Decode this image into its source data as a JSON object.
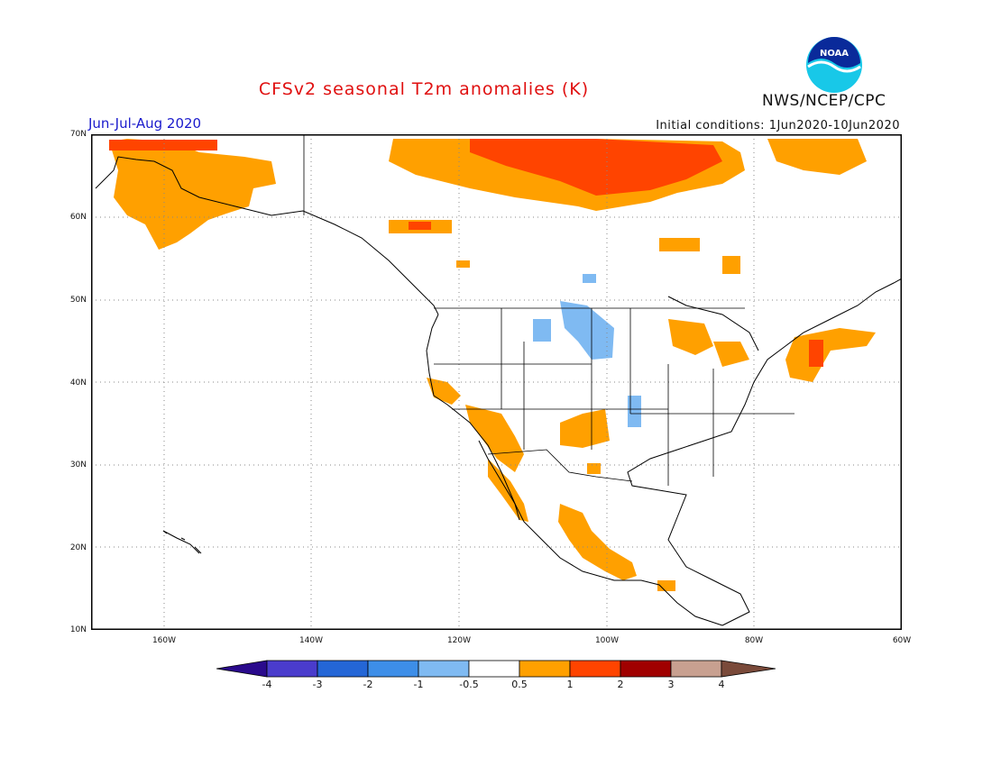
{
  "title": "CFSv2 seasonal T2m anomalies (K)",
  "period": "Jun-Jul-Aug 2020",
  "initial_conditions": "Initial conditions: 1Jun2020-10Jun2020",
  "agency": "NWS/NCEP/CPC",
  "logo_text": "NOAA",
  "lat_labels": [
    "70N",
    "60N",
    "50N",
    "40N",
    "30N",
    "20N",
    "10N"
  ],
  "lon_labels": [
    "160W",
    "140W",
    "120W",
    "100W",
    "80W",
    "60W"
  ],
  "colorbar": {
    "labels": [
      "-4",
      "-3",
      "-2",
      "-1",
      "-0.5",
      "0.5",
      "1",
      "2",
      "3",
      "4"
    ],
    "colors": [
      "#2a0a8c",
      "#4a3ccc",
      "#2466d6",
      "#3d8ee8",
      "#7fbaf2",
      "#ffffff",
      "#ffa000",
      "#ff4400",
      "#a00000",
      "#c8a090",
      "#7a4a3a"
    ]
  }
}
